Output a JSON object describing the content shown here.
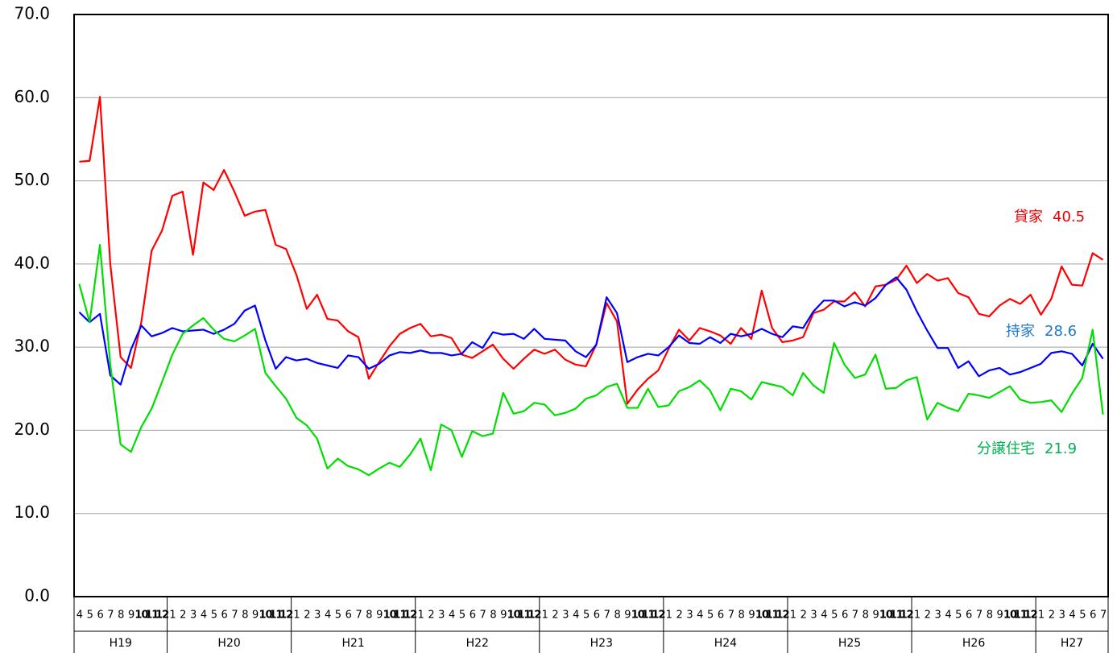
{
  "chart_data": {
    "type": "line",
    "ylim": [
      0,
      70
    ],
    "yticks": [
      {
        "value": 0,
        "label": "0.0"
      },
      {
        "value": 10,
        "label": "10.0"
      },
      {
        "value": 20,
        "label": "20.0"
      },
      {
        "value": 30,
        "label": "30.0"
      },
      {
        "value": 40,
        "label": "40.0"
      },
      {
        "value": 50,
        "label": "50.0"
      },
      {
        "value": 60,
        "label": "60.0"
      },
      {
        "value": 70,
        "label": "70.0"
      }
    ],
    "grid": true,
    "categories": [
      "4",
      "5",
      "6",
      "7",
      "8",
      "9",
      "10",
      "11",
      "12",
      "1",
      "2",
      "3",
      "4",
      "5",
      "6",
      "7",
      "8",
      "9",
      "10",
      "11",
      "12",
      "1",
      "2",
      "3",
      "4",
      "5",
      "6",
      "7",
      "8",
      "9",
      "10",
      "11",
      "12",
      "1",
      "2",
      "3",
      "4",
      "5",
      "6",
      "7",
      "8",
      "9",
      "10",
      "11",
      "12",
      "1",
      "2",
      "3",
      "4",
      "5",
      "6",
      "7",
      "8",
      "9",
      "10",
      "11",
      "12",
      "1",
      "2",
      "3",
      "4",
      "5",
      "6",
      "7",
      "8",
      "9",
      "10",
      "11",
      "12",
      "1",
      "2",
      "3",
      "4",
      "5",
      "6",
      "7",
      "8",
      "9",
      "10",
      "11",
      "12",
      "1",
      "2",
      "3",
      "4",
      "5",
      "6",
      "7",
      "8",
      "9",
      "10",
      "11",
      "12",
      "1",
      "2",
      "3",
      "4",
      "5",
      "6",
      "7"
    ],
    "groups": [
      "H19",
      "H20",
      "H21",
      "H22",
      "H23",
      "H24",
      "H25",
      "H26",
      "H27"
    ],
    "series": [
      {
        "name": "貸家",
        "color": "#ff0000",
        "label_color": "#e00000",
        "values": [
          52.3,
          52.4,
          60.1,
          40,
          28.8,
          27.5,
          33,
          41.6,
          44,
          48.2,
          48.7,
          41.1,
          49.8,
          48.9,
          51.3,
          48.7,
          45.8,
          46.3,
          46.5,
          42.3,
          41.8,
          38.7,
          34.6,
          36.3,
          33.4,
          33.2,
          31.9,
          31.2,
          26.2,
          28.2,
          30.1,
          31.6,
          32.3,
          32.8,
          31.3,
          31.5,
          31.1,
          29.1,
          28.7,
          29.5,
          30.3,
          28.6,
          27.4,
          28.6,
          29.7,
          29.2,
          29.7,
          28.5,
          27.9,
          27.7,
          30.3,
          35.3,
          33.1,
          23.2,
          24.9,
          26.2,
          27.2,
          29.8,
          32.1,
          30.8,
          32.3,
          31.9,
          31.4,
          30.4,
          32.3,
          31.0,
          36.8,
          32.3,
          30.6,
          30.8,
          31.2,
          34.1,
          34.5,
          35.5,
          35.5,
          36.6,
          34.9,
          37.3,
          37.5,
          38.1,
          39.8,
          37.7,
          38.8,
          38.0,
          38.3,
          36.5,
          36.0,
          34.0,
          33.7,
          35.0,
          35.8,
          35.2,
          36.3,
          33.9,
          35.8,
          39.7,
          37.5,
          37.4,
          41.3,
          40.5
        ]
      },
      {
        "name": "持家",
        "color": "#0000ff",
        "label_color": "#1e78c8",
        "values": [
          34.2,
          33.0,
          34.0,
          26.6,
          25.5,
          29.7,
          32.6,
          31.3,
          31.7,
          32.3,
          31.9,
          32.0,
          32.1,
          31.6,
          32.1,
          32.8,
          34.4,
          35.0,
          30.8,
          27.4,
          28.8,
          28.4,
          28.6,
          28.1,
          27.8,
          27.5,
          29.0,
          28.8,
          27.4,
          28.0,
          29.0,
          29.4,
          29.3,
          29.6,
          29.3,
          29.3,
          29.0,
          29.2,
          30.6,
          29.9,
          31.8,
          31.5,
          31.6,
          31.0,
          32.2,
          31.0,
          30.9,
          30.8,
          29.5,
          28.8,
          30.3,
          36.0,
          34.1,
          28.2,
          28.8,
          29.2,
          29.0,
          30.0,
          31.4,
          30.5,
          30.4,
          31.2,
          30.5,
          31.6,
          31.3,
          31.6,
          32.2,
          31.6,
          31.2,
          32.5,
          32.3,
          34.3,
          35.6,
          35.6,
          34.9,
          35.4,
          35.0,
          35.9,
          37.5,
          38.4,
          36.9,
          34.3,
          32.0,
          29.9,
          29.9,
          27.5,
          28.3,
          26.5,
          27.2,
          27.5,
          26.7,
          27.0,
          27.5,
          28.0,
          29.3,
          29.5,
          29.2,
          27.8,
          30.4,
          28.6
        ]
      },
      {
        "name": "分譲住宅",
        "color": "#00dd00",
        "label_color": "#00b050",
        "values": [
          37.6,
          33.0,
          42.3,
          27.9,
          18.3,
          17.4,
          20.4,
          22.6,
          25.8,
          29.1,
          31.6,
          32.6,
          33.5,
          32.1,
          31.0,
          30.7,
          31.4,
          32.2,
          26.9,
          25.3,
          23.8,
          21.5,
          20.6,
          19.0,
          15.4,
          16.6,
          15.7,
          15.3,
          14.6,
          15.4,
          16.1,
          15.6,
          17.1,
          19.0,
          15.2,
          20.7,
          20.0,
          16.8,
          19.9,
          19.3,
          19.6,
          24.5,
          22.0,
          22.3,
          23.3,
          23.1,
          21.8,
          22.1,
          22.6,
          23.8,
          24.2,
          25.2,
          25.6,
          22.7,
          22.7,
          25.0,
          22.8,
          23.0,
          24.7,
          25.2,
          26.0,
          24.8,
          22.4,
          25.0,
          24.7,
          23.7,
          25.8,
          25.5,
          25.2,
          24.2,
          26.9,
          25.4,
          24.5,
          30.5,
          27.9,
          26.3,
          26.7,
          29.1,
          25.0,
          25.1,
          26.0,
          26.4,
          21.3,
          23.3,
          22.7,
          22.3,
          24.4,
          24.2,
          23.9,
          24.6,
          25.3,
          23.7,
          23.3,
          23.4,
          23.6,
          22.2,
          24.4,
          26.3,
          32.1,
          21.9
        ]
      }
    ]
  }
}
